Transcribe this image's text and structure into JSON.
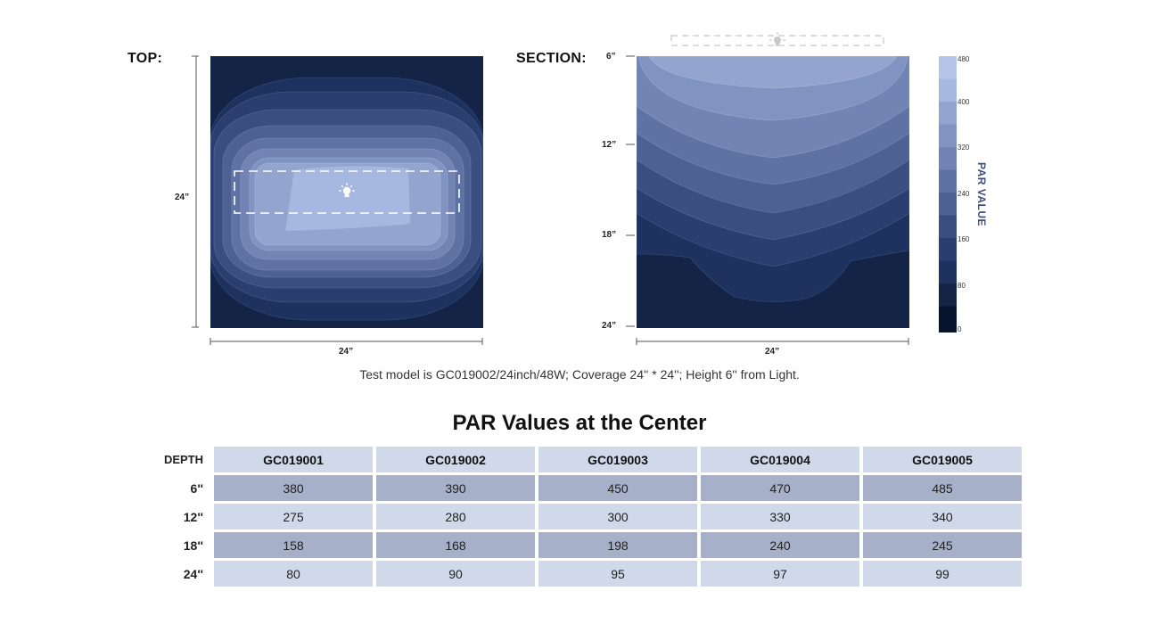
{
  "top_view": {
    "title": "TOP:",
    "dim_side": "24”",
    "dim_bottom": "24”"
  },
  "section_view": {
    "title": "SECTION:",
    "ticks": [
      "6”",
      "12”",
      "18”",
      "24”"
    ],
    "dim_bottom": "24”"
  },
  "legend": {
    "title": "PAR VALUE",
    "ticks": [
      "480",
      "400",
      "320",
      "240",
      "160",
      "80",
      "0"
    ],
    "colors": [
      "#08132e",
      "#142447",
      "#1e3260",
      "#2a3f6f",
      "#3a4f7f",
      "#4d6292",
      "#5e73a3",
      "#7184b3",
      "#8194c1",
      "#93a5cf",
      "#a7b8e0",
      "#b6c6ea"
    ]
  },
  "caption": "Test model is GC019002/24inch/48W; Coverage 24'' * 24''; Height 6'' from Light.",
  "table": {
    "title": "PAR Values at the Center",
    "depth_header": "DEPTH",
    "models": [
      "GC019001",
      "GC019002",
      "GC019003",
      "GC019004",
      "GC019005"
    ],
    "rows": [
      {
        "depth": "6''",
        "values": [
          "380",
          "390",
          "450",
          "470",
          "485"
        ]
      },
      {
        "depth": "12''",
        "values": [
          "275",
          "280",
          "300",
          "330",
          "340"
        ]
      },
      {
        "depth": "18''",
        "values": [
          "158",
          "168",
          "198",
          "240",
          "245"
        ]
      },
      {
        "depth": "24''",
        "values": [
          "80",
          "90",
          "95",
          "97",
          "99"
        ]
      }
    ]
  }
}
